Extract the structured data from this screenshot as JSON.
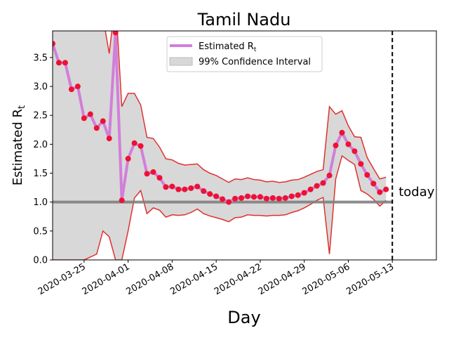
{
  "chart_data": {
    "type": "line",
    "title": "Tamil Nadu",
    "x_label": "Day",
    "y_label": {
      "text": "Estimated R",
      "subscript": "t"
    },
    "x": [
      "2020-03-20",
      "2020-03-21",
      "2020-03-22",
      "2020-03-23",
      "2020-03-24",
      "2020-03-25",
      "2020-03-26",
      "2020-03-27",
      "2020-03-28",
      "2020-03-29",
      "2020-03-30",
      "2020-03-31",
      "2020-04-01",
      "2020-04-02",
      "2020-04-03",
      "2020-04-04",
      "2020-04-05",
      "2020-04-06",
      "2020-04-07",
      "2020-04-08",
      "2020-04-09",
      "2020-04-10",
      "2020-04-11",
      "2020-04-12",
      "2020-04-13",
      "2020-04-14",
      "2020-04-15",
      "2020-04-16",
      "2020-04-17",
      "2020-04-18",
      "2020-04-19",
      "2020-04-20",
      "2020-04-21",
      "2020-04-22",
      "2020-04-23",
      "2020-04-24",
      "2020-04-25",
      "2020-04-26",
      "2020-04-27",
      "2020-04-28",
      "2020-04-29",
      "2020-04-30",
      "2020-05-01",
      "2020-05-02",
      "2020-05-03",
      "2020-05-04",
      "2020-05-05",
      "2020-05-06",
      "2020-05-07",
      "2020-05-08",
      "2020-05-09",
      "2020-05-10",
      "2020-05-11",
      "2020-05-12"
    ],
    "series": [
      {
        "name": {
          "text": "Estimated R",
          "subscript": "t"
        },
        "color": "#d17fd9",
        "marker_color": "#ee1133",
        "values": [
          3.74,
          3.41,
          3.41,
          2.95,
          3.0,
          2.45,
          2.52,
          2.28,
          2.4,
          2.1,
          3.93,
          1.03,
          1.75,
          2.02,
          1.97,
          1.49,
          1.52,
          1.42,
          1.26,
          1.27,
          1.22,
          1.22,
          1.24,
          1.27,
          1.19,
          1.14,
          1.1,
          1.05,
          1.0,
          1.06,
          1.07,
          1.1,
          1.09,
          1.09,
          1.06,
          1.07,
          1.06,
          1.07,
          1.1,
          1.12,
          1.16,
          1.22,
          1.28,
          1.33,
          1.46,
          1.98,
          2.2,
          2.0,
          1.88,
          1.66,
          1.47,
          1.32,
          1.17,
          1.22
        ]
      }
    ],
    "interval": {
      "name": "99% Confidence Interval",
      "color": "#d8d8d8",
      "edge_color": "#e03030",
      "upper": [
        4.5,
        4.5,
        4.5,
        4.5,
        4.5,
        4.5,
        4.5,
        4.5,
        4.2,
        3.57,
        4.5,
        2.65,
        2.88,
        2.88,
        2.68,
        2.12,
        2.1,
        1.95,
        1.75,
        1.73,
        1.67,
        1.64,
        1.65,
        1.66,
        1.56,
        1.5,
        1.46,
        1.4,
        1.34,
        1.4,
        1.39,
        1.42,
        1.39,
        1.38,
        1.35,
        1.36,
        1.34,
        1.35,
        1.38,
        1.39,
        1.43,
        1.48,
        1.53,
        1.56,
        2.65,
        2.52,
        2.58,
        2.32,
        2.13,
        2.12,
        1.77,
        1.58,
        1.4,
        1.43
      ],
      "lower": [
        0,
        0,
        0,
        0,
        0,
        0,
        0.05,
        0.1,
        0.5,
        0.4,
        0,
        0,
        0.5,
        1.07,
        1.2,
        0.8,
        0.9,
        0.86,
        0.74,
        0.78,
        0.77,
        0.78,
        0.82,
        0.88,
        0.8,
        0.76,
        0.73,
        0.7,
        0.66,
        0.73,
        0.74,
        0.78,
        0.77,
        0.77,
        0.76,
        0.77,
        0.77,
        0.78,
        0.82,
        0.85,
        0.9,
        0.96,
        1.03,
        1.08,
        0.1,
        1.4,
        1.8,
        1.72,
        1.65,
        1.2,
        1.14,
        1.05,
        0.93,
        1.03
      ]
    },
    "reference_line": {
      "value": 1,
      "color": "#808080"
    },
    "today": {
      "x": "2020-05-13",
      "label": "today"
    },
    "xlim": [
      "2020-03-20",
      "2020-05-20"
    ],
    "xticks": [
      "2020-03-25",
      "2020-04-01",
      "2020-04-08",
      "2020-04-15",
      "2020-04-22",
      "2020-04-29",
      "2020-05-06",
      "2020-05-13"
    ],
    "ylim": [
      0,
      3.96
    ],
    "yticks": [
      {
        "value": 0,
        "label": "0.0"
      },
      {
        "value": 0.5,
        "label": "0.5"
      },
      {
        "value": 1,
        "label": "1.0"
      },
      {
        "value": 1.5,
        "label": "1.5"
      },
      {
        "value": 2,
        "label": "2.0"
      },
      {
        "value": 2.5,
        "label": "2.5"
      },
      {
        "value": 3,
        "label": "3.0"
      },
      {
        "value": 3.5,
        "label": "3.5"
      }
    ],
    "legend": "upper center"
  }
}
